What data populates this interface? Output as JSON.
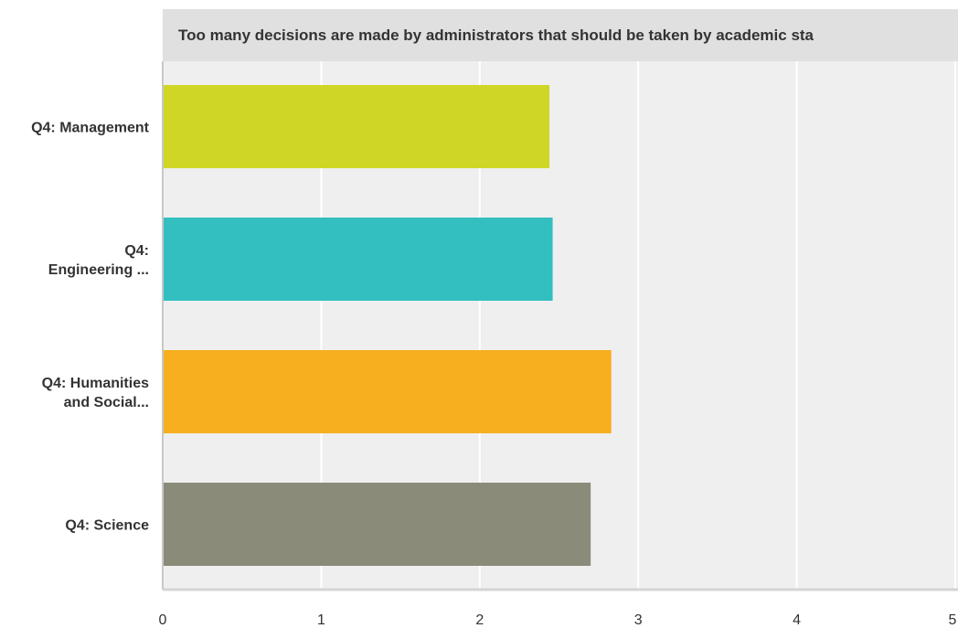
{
  "chart_data": {
    "type": "bar",
    "orientation": "horizontal",
    "title": "Too many decisions are made by administrators that should be taken by academic sta",
    "categories": [
      "Q4: Management",
      "Q4: Engineering ...",
      "Q4: Humanities and Social...",
      "Q4: Science"
    ],
    "category_label_lines": [
      [
        "Q4: Management"
      ],
      [
        "Q4:",
        "Engineering ..."
      ],
      [
        "Q4: Humanities",
        "and Social..."
      ],
      [
        "Q4: Science"
      ]
    ],
    "values": [
      2.44,
      2.46,
      2.83,
      2.7
    ],
    "bar_colors": [
      "#cfd626",
      "#33bec0",
      "#f7ae1f",
      "#8b8b7a"
    ],
    "xlim": [
      0,
      5
    ],
    "xticks": [
      "0",
      "1",
      "2",
      "3",
      "4",
      "5"
    ],
    "xlabel": "",
    "ylabel": "",
    "grid": true,
    "legend": "none"
  }
}
